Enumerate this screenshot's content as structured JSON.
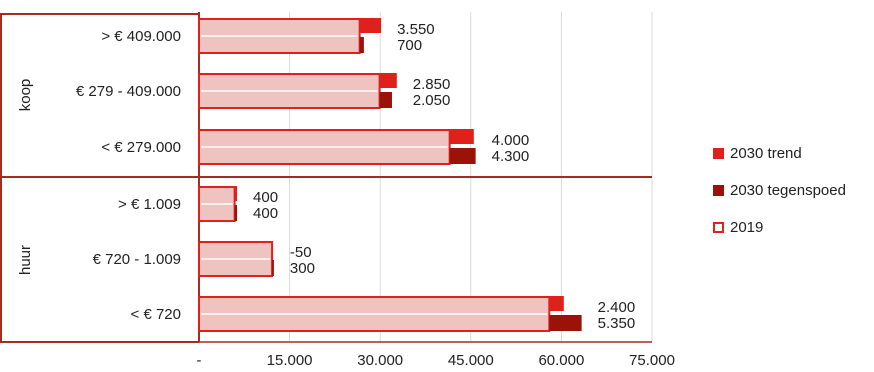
{
  "chart_data": {
    "type": "bar",
    "orientation": "horizontal",
    "stacked": true,
    "groups": [
      {
        "label": "koop",
        "categories": [
          "> € 409.000",
          "€ 279 - 409.000",
          "< € 279.000"
        ]
      },
      {
        "label": "huur",
        "categories": [
          "> € 1.009",
          "€ 720 - 1.009",
          "< € 720"
        ]
      }
    ],
    "categories": [
      "> € 409.000",
      "€ 279 - 409.000",
      "< € 279.000",
      "> € 1.009",
      "€ 720 - 1.009",
      "< € 720"
    ],
    "series": [
      {
        "name": "2019",
        "values": [
          26600,
          29900,
          41500,
          5900,
          12100,
          58000
        ]
      },
      {
        "name": "2030 trend",
        "values": [
          3550,
          2850,
          4000,
          400,
          -50,
          2400
        ],
        "labels": [
          "3.550",
          "2.850",
          "4.000",
          "400",
          "-50",
          "2.400"
        ]
      },
      {
        "name": "2030 tegenspoed",
        "values": [
          700,
          2050,
          4300,
          400,
          300,
          5350
        ],
        "labels": [
          "700",
          "2.050",
          "4.300",
          "400",
          "300",
          "5.350"
        ]
      }
    ],
    "xlim": [
      0,
      75000
    ],
    "xticks": [
      {
        "value": 0,
        "label": "-"
      },
      {
        "value": 15000,
        "label": "15.000"
      },
      {
        "value": 30000,
        "label": "30.000"
      },
      {
        "value": 45000,
        "label": "45.000"
      },
      {
        "value": 60000,
        "label": "60.000"
      },
      {
        "value": 75000,
        "label": "75.000"
      }
    ],
    "grid": true,
    "legend_position": "right",
    "colors": {
      "trend": "#e0201b",
      "tegenspoed": "#9b1208",
      "base_fill": "#efc4c0",
      "base_outline": "#e0201b",
      "frame": "#a82a22",
      "grid": "#d9d9d9"
    }
  },
  "legend": [
    {
      "label": "2030 trend",
      "swatch": "trend"
    },
    {
      "label": "2030 tegenspoed",
      "swatch": "tegenspoed"
    },
    {
      "label": "2019",
      "swatch": "outline"
    }
  ]
}
